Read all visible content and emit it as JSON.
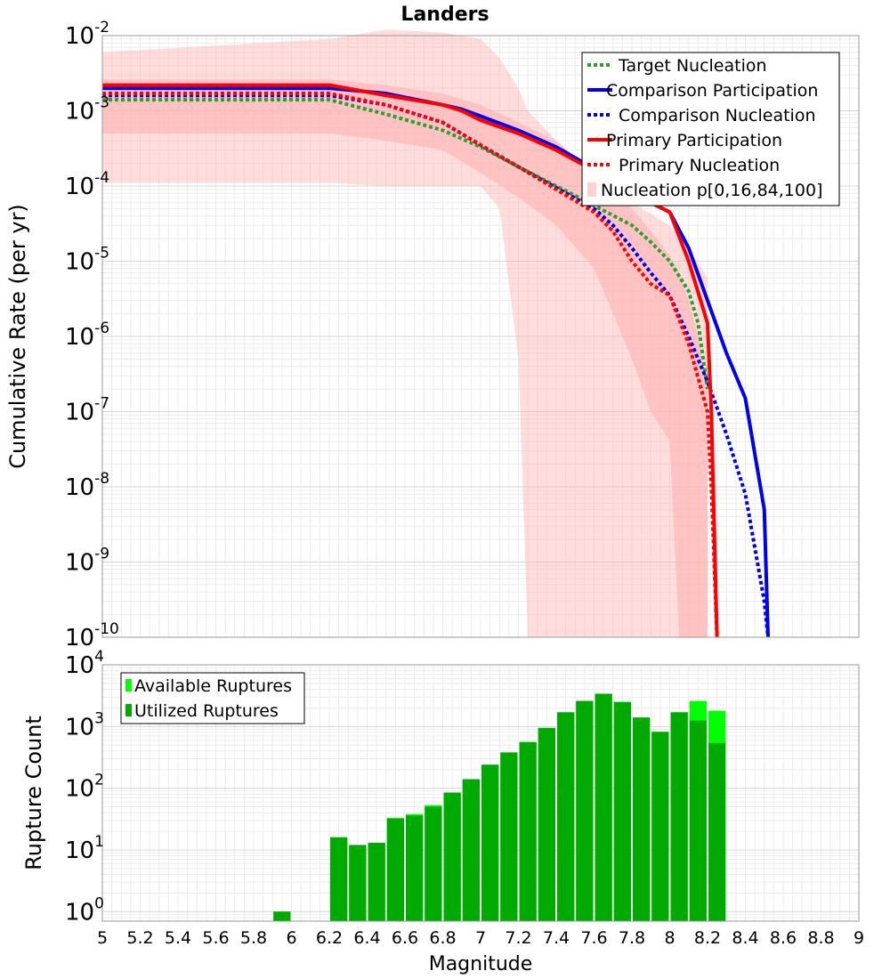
{
  "chart_data": [
    {
      "type": "line",
      "title": "Landers",
      "xlabel": "",
      "ylabel": "Cumulative Rate (per yr)",
      "xlim": [
        5,
        9
      ],
      "ylim": [
        1e-10,
        0.01
      ],
      "y_scale": "log",
      "grid": true,
      "legend_position": "top-right",
      "y_ticks": [
        {
          "base": "10",
          "exp": "-2"
        },
        {
          "base": "10",
          "exp": "-3"
        },
        {
          "base": "10",
          "exp": "-4"
        },
        {
          "base": "10",
          "exp": "-5"
        },
        {
          "base": "10",
          "exp": "-6"
        },
        {
          "base": "10",
          "exp": "-7"
        },
        {
          "base": "10",
          "exp": "-8"
        },
        {
          "base": "10",
          "exp": "-9"
        },
        {
          "base": "10",
          "exp": "-10"
        }
      ],
      "bands": [
        {
          "name": "Nucleation p[0,16,84,100]",
          "color": "#ffb3b3",
          "outer_x": [
            5.0,
            6.2,
            6.5,
            6.8,
            7.0,
            7.1,
            7.2,
            7.25,
            7.4,
            7.6,
            7.8,
            8.0,
            8.1,
            8.2
          ],
          "outer_low": [
            0.00011,
            0.00011,
            0.0001,
            0.0001,
            0.0001,
            5e-05,
            5e-07,
            1e-10,
            1e-10,
            1e-10,
            1e-10,
            1e-10,
            1e-10,
            1e-10
          ],
          "outer_high": [
            0.006,
            0.009,
            0.012,
            0.011,
            0.009,
            0.005,
            0.002,
            0.001,
            0.0004,
            0.00015,
            6e-05,
            3e-05,
            1.5e-05,
            6e-06
          ],
          "inner_x": [
            5.0,
            6.2,
            6.5,
            6.8,
            7.0,
            7.2,
            7.4,
            7.6,
            7.7,
            7.8,
            7.9,
            8.0,
            8.05,
            8.1,
            8.15,
            8.2
          ],
          "inner_low": [
            0.0005,
            0.0005,
            0.0004,
            0.0003,
            0.00015,
            7e-05,
            3e-05,
            8e-06,
            2e-06,
            5e-07,
            1e-07,
            4e-08,
            1e-10,
            1e-10,
            1e-10,
            1e-10
          ],
          "inner_high": [
            0.0026,
            0.0026,
            0.0022,
            0.0017,
            0.0012,
            0.0007,
            0.0004,
            0.00015,
            9e-05,
            5e-05,
            2.5e-05,
            1.2e-05,
            7e-06,
            3e-06,
            1e-06,
            2e-07
          ]
        }
      ],
      "series": [
        {
          "name": "Target Nucleation",
          "color": "#2ca02c",
          "dashed": true,
          "x": [
            5.0,
            6.2,
            6.5,
            6.8,
            7.0,
            7.2,
            7.4,
            7.6,
            7.8,
            7.9,
            8.0,
            8.1,
            8.15,
            8.2
          ],
          "y": [
            0.0014,
            0.0014,
            0.0009,
            0.00055,
            0.00033,
            0.00018,
            0.0001,
            5.5e-05,
            3e-05,
            1.8e-05,
            1e-05,
            4e-06,
            1.5e-06,
            2e-07
          ]
        },
        {
          "name": "Comparison Participation",
          "color": "#0000ee",
          "dashed": false,
          "x": [
            5.0,
            6.2,
            6.5,
            6.8,
            6.9,
            7.0,
            7.2,
            7.4,
            7.6,
            7.8,
            8.0,
            8.1,
            8.3,
            8.4,
            8.5,
            8.52
          ],
          "y": [
            0.002,
            0.002,
            0.0017,
            0.0012,
            0.00105,
            0.00085,
            0.00055,
            0.00033,
            0.00017,
            8e-05,
            4.5e-05,
            1.5e-05,
            6e-07,
            1.5e-07,
            5e-09,
            1e-10
          ]
        },
        {
          "name": "Comparison Nucleation",
          "color": "#0000ee",
          "dashed": true,
          "x": [
            5.0,
            6.2,
            6.5,
            6.8,
            7.0,
            7.2,
            7.4,
            7.6,
            7.7,
            7.8,
            7.9,
            8.0,
            8.1,
            8.2,
            8.3,
            8.4,
            8.5,
            8.52
          ],
          "y": [
            0.0016,
            0.0016,
            0.0012,
            0.0007,
            0.00035,
            0.00018,
            9.5e-05,
            5e-05,
            3e-05,
            1.5e-05,
            7e-06,
            3.5e-06,
            1e-06,
            2.5e-07,
            5e-08,
            8e-09,
            3e-10,
            1e-10
          ]
        },
        {
          "name": "Primary Participation",
          "color": "#ff0000",
          "dashed": false,
          "x": [
            5.0,
            6.2,
            6.5,
            6.8,
            6.9,
            7.0,
            7.2,
            7.4,
            7.6,
            7.8,
            7.9,
            8.0,
            8.1,
            8.2,
            8.22,
            8.25
          ],
          "y": [
            0.0022,
            0.0022,
            0.0016,
            0.0012,
            0.001,
            0.00075,
            0.0005,
            0.0003,
            0.00016,
            8e-05,
            6e-05,
            4.5e-05,
            1e-05,
            1.5e-06,
            1e-07,
            1e-10
          ]
        },
        {
          "name": "Primary Nucleation",
          "color": "#ff0000",
          "dashed": true,
          "x": [
            5.0,
            6.2,
            6.5,
            6.8,
            7.0,
            7.2,
            7.4,
            7.6,
            7.7,
            7.8,
            7.9,
            8.0,
            8.1,
            8.2,
            8.22,
            8.25
          ],
          "y": [
            0.0017,
            0.0017,
            0.0012,
            0.0007,
            0.00035,
            0.00018,
            9e-05,
            4.5e-05,
            2.5e-05,
            1e-05,
            5e-06,
            3.5e-06,
            8e-07,
            1e-07,
            1e-08,
            1e-10
          ]
        }
      ]
    },
    {
      "type": "bar",
      "xlabel": "Magnitude",
      "ylabel": "Rupture Count",
      "xlim": [
        5,
        9
      ],
      "ylim": [
        0.7,
        10000
      ],
      "y_scale": "log",
      "grid": true,
      "legend_position": "top-left",
      "bin_width": 0.1,
      "x_ticks": [
        "5",
        "5.2",
        "5.4",
        "5.6",
        "5.8",
        "6",
        "6.2",
        "6.4",
        "6.6",
        "6.8",
        "7",
        "7.2",
        "7.4",
        "7.6",
        "7.8",
        "8",
        "8.2",
        "8.4",
        "8.6",
        "8.8",
        "9"
      ],
      "y_ticks": [
        {
          "base": "10",
          "exp": "0"
        },
        {
          "base": "10",
          "exp": "1"
        },
        {
          "base": "10",
          "exp": "2"
        },
        {
          "base": "10",
          "exp": "3"
        },
        {
          "base": "10",
          "exp": "4"
        }
      ],
      "bin_centers": [
        5.95,
        6.25,
        6.35,
        6.45,
        6.55,
        6.65,
        6.75,
        6.85,
        6.95,
        7.05,
        7.15,
        7.25,
        7.35,
        7.45,
        7.55,
        7.65,
        7.75,
        7.85,
        7.95,
        8.05,
        8.15,
        8.25
      ],
      "series": [
        {
          "name": "Available Ruptures",
          "color": "#00ff00",
          "values": [
            1,
            16,
            12,
            13,
            33,
            38,
            53,
            85,
            140,
            240,
            380,
            560,
            950,
            1700,
            2600,
            3400,
            2500,
            1400,
            820,
            1700,
            2600,
            1800
          ]
        },
        {
          "name": "Utilized Ruptures",
          "color": "#00aa00",
          "values": [
            1,
            16,
            12,
            13,
            32,
            36,
            50,
            85,
            140,
            240,
            380,
            560,
            950,
            1700,
            2600,
            3400,
            2500,
            1400,
            820,
            1700,
            1250,
            540
          ]
        }
      ]
    }
  ]
}
